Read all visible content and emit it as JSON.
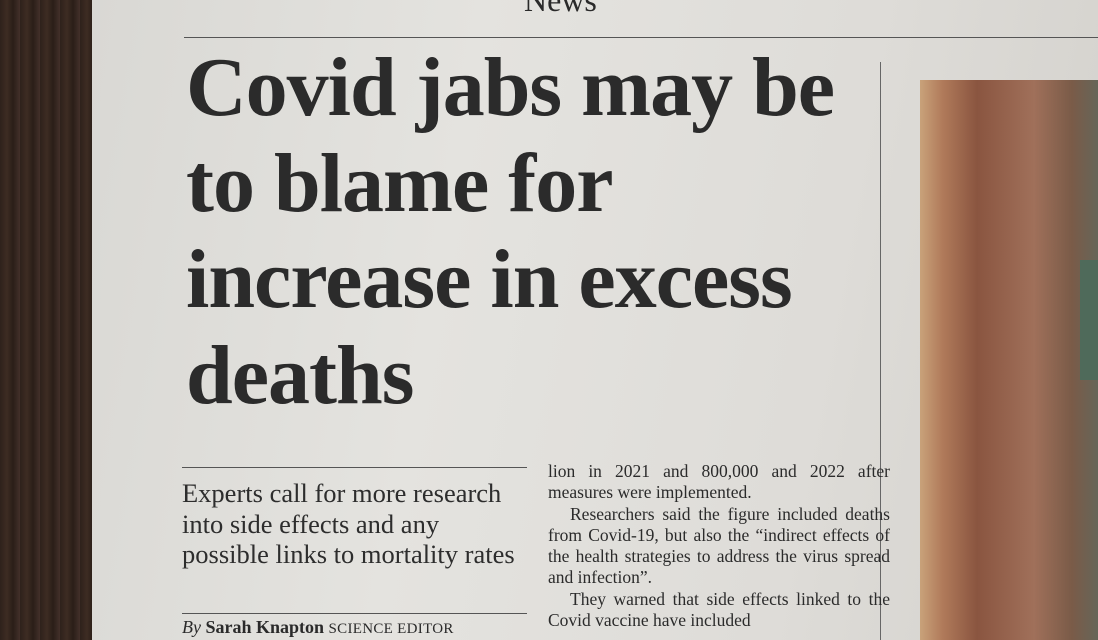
{
  "section": "News",
  "headline": "Covid jabs may be to blame for increase in excess deaths",
  "standfirst": "Experts call for more research into side effects and any possible links to mortality rates",
  "byline": {
    "prefix": "By",
    "name": "Sarah Knapton",
    "role": "SCIENCE EDITOR"
  },
  "body": [
    "lion in 2021 and 800,000 and 2022 after measures were implemented.",
    "Researchers said the figure included deaths from Covid-19, but also the “indirect effects of the health strategies to address the virus spread and infection”.",
    "They warned that side effects linked to the Covid vaccine have included"
  ]
}
